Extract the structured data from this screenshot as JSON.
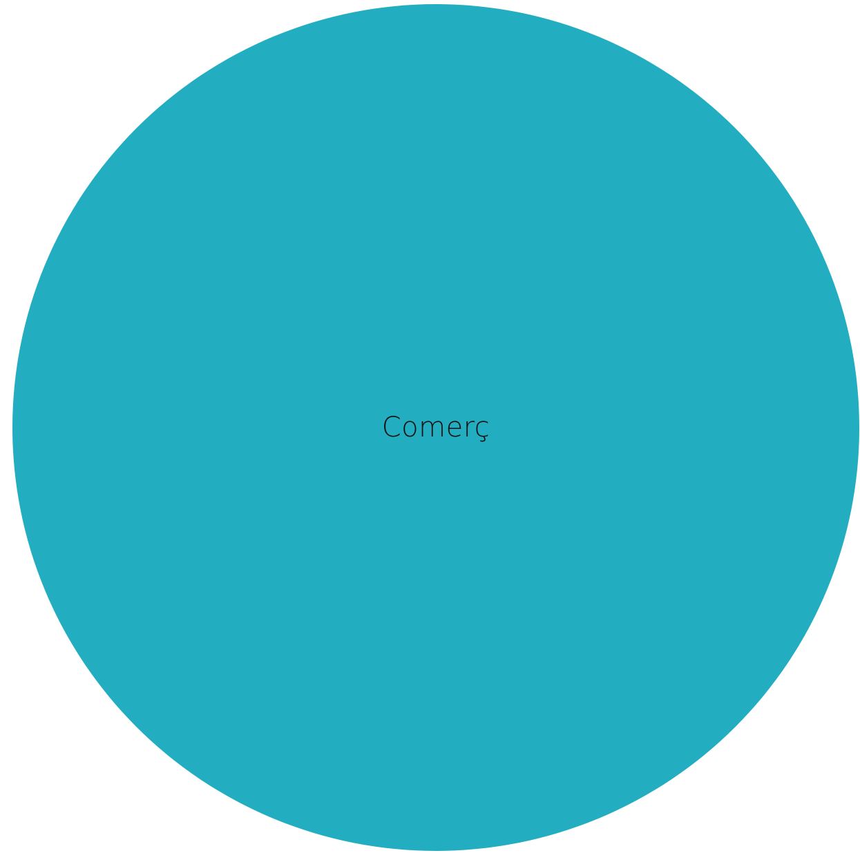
{
  "bubble": {
    "label": "Comerç",
    "color": "#22aec0"
  }
}
